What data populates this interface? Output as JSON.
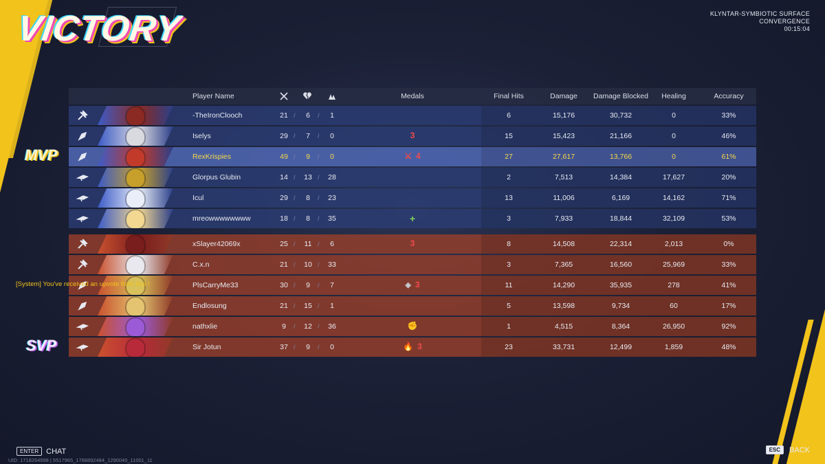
{
  "header": {
    "title": "VICTORY",
    "map_line1": "KLYNTAR-SYMBIOTIC SURFACE",
    "map_line2": "CONVERGENCE",
    "match_time": "00:15:04"
  },
  "columns": {
    "player_name": "Player Name",
    "kills_icon": "crossed-swords-icon",
    "deaths_icon": "broken-heart-icon",
    "assists_icon": "assist-hands-icon",
    "medals": "Medals",
    "final_hits": "Final Hits",
    "damage": "Damage",
    "damage_blocked": "Damage Blocked",
    "healing": "Healing",
    "accuracy": "Accuracy"
  },
  "badges": {
    "mvp": "MVP",
    "svp": "SVP"
  },
  "colors": {
    "accent_yellow": "#f2c31b",
    "team_blue": "#2c3e76",
    "team_red": "#963e2a",
    "mvp_gold": "#f5d84a",
    "medal_red": "#ef4b4b"
  },
  "team_blue": [
    {
      "role": "vanguard-icon",
      "name": "-TheIronClooch",
      "k": "21",
      "d": "6",
      "a": "1",
      "medals": [],
      "final_hits": "6",
      "damage": "15,176",
      "blocked": "30,732",
      "healing": "0",
      "accuracy": "33%"
    },
    {
      "role": "duelist-icon",
      "name": "Iselys",
      "k": "29",
      "d": "7",
      "a": "0",
      "medals": [
        {
          "icon": "streak-medal-icon",
          "label": "3"
        }
      ],
      "final_hits": "15",
      "damage": "15,423",
      "blocked": "21,166",
      "healing": "0",
      "accuracy": "46%"
    },
    {
      "role": "duelist-icon",
      "name": "RexKrispies",
      "k": "49",
      "d": "9",
      "a": "0",
      "medals": [
        {
          "icon": "kills-medal-icon",
          "label": "⚔"
        },
        {
          "icon": "streak-medal-icon",
          "label": "4"
        }
      ],
      "final_hits": "27",
      "damage": "27,617",
      "blocked": "13,766",
      "healing": "0",
      "accuracy": "61%"
    },
    {
      "role": "strategist-icon",
      "name": "Glorpus Glubin",
      "k": "14",
      "d": "13",
      "a": "28",
      "medals": [],
      "final_hits": "2",
      "damage": "7,513",
      "blocked": "14,384",
      "healing": "17,627",
      "accuracy": "20%"
    },
    {
      "role": "strategist-icon",
      "name": "Icul",
      "k": "29",
      "d": "8",
      "a": "23",
      "medals": [],
      "final_hits": "13",
      "damage": "11,006",
      "blocked": "6,169",
      "healing": "14,162",
      "accuracy": "71%"
    },
    {
      "role": "strategist-icon",
      "name": "mreowwwwwwww",
      "k": "18",
      "d": "8",
      "a": "35",
      "medals": [
        {
          "icon": "heal-medal-icon",
          "label": "+"
        }
      ],
      "final_hits": "3",
      "damage": "7,933",
      "blocked": "18,844",
      "healing": "32,109",
      "accuracy": "53%"
    }
  ],
  "team_red": [
    {
      "role": "vanguard-icon",
      "name": "xSlayer42069x",
      "k": "25",
      "d": "11",
      "a": "6",
      "medals": [
        {
          "icon": "streak-medal-icon",
          "label": "3"
        }
      ],
      "final_hits": "8",
      "damage": "14,508",
      "blocked": "22,314",
      "healing": "2,013",
      "accuracy": "0%"
    },
    {
      "role": "vanguard-icon",
      "name": "C.x.n",
      "k": "21",
      "d": "10",
      "a": "33",
      "medals": [],
      "final_hits": "3",
      "damage": "7,365",
      "blocked": "16,560",
      "healing": "25,969",
      "accuracy": "33%"
    },
    {
      "role": "duelist-icon",
      "name": "PlsCarryMe33",
      "k": "30",
      "d": "9",
      "a": "7",
      "medals": [
        {
          "icon": "shield-medal-icon",
          "label": "◈"
        },
        {
          "icon": "streak-medal-icon",
          "label": "3"
        }
      ],
      "final_hits": "11",
      "damage": "14,290",
      "blocked": "35,935",
      "healing": "278",
      "accuracy": "41%"
    },
    {
      "role": "duelist-icon",
      "name": "Endlosung",
      "k": "21",
      "d": "15",
      "a": "1",
      "medals": [],
      "final_hits": "5",
      "damage": "13,598",
      "blocked": "9,734",
      "healing": "60",
      "accuracy": "17%"
    },
    {
      "role": "strategist-icon",
      "name": "nathxlie",
      "k": "9",
      "d": "12",
      "a": "36",
      "medals": [
        {
          "icon": "fist-medal-icon",
          "label": "✊"
        }
      ],
      "final_hits": "1",
      "damage": "4,515",
      "blocked": "8,364",
      "healing": "26,950",
      "accuracy": "92%"
    },
    {
      "role": "strategist-icon",
      "name": "Sir Jotun",
      "k": "37",
      "d": "9",
      "a": "0",
      "medals": [
        {
          "icon": "fire-medal-icon",
          "label": "🔥"
        },
        {
          "icon": "streak-medal-icon",
          "label": "3"
        }
      ],
      "final_hits": "23",
      "damage": "33,731",
      "blocked": "12,499",
      "healing": "1,859",
      "accuracy": "48%"
    }
  ],
  "chat": {
    "system_message": "[System] You've received an upvote from Icul !",
    "enter_key": "ENTER",
    "chat_label": "CHAT"
  },
  "footer": {
    "uid": "UID: 1718264998 | 5517965_1768892484_1290040_11001_11",
    "esc_key": "ESC",
    "back_label": "BACK"
  }
}
